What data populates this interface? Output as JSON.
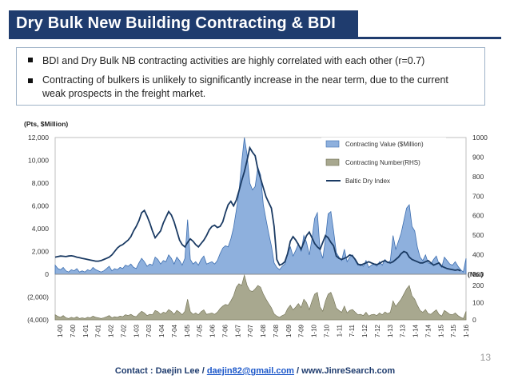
{
  "header": {
    "title": "Dry Bulk New Building Contracting & BDI"
  },
  "bullets": [
    "BDI and Dry Bulk NB contracting activities are highly correlated with each other (r=0.7)",
    "Contracting of bulkers is unlikely to significantly increase in the near term, due to the current weak prospects in the freight market."
  ],
  "footer": {
    "prefix": "Contact : Daejin Lee / ",
    "email": "daejin82@gmail.com",
    "suffix": " / www.JinreSearch.com"
  },
  "page_number": "13",
  "chart_data": {
    "type": "area",
    "left_axis_label": "(Pts, $Million)",
    "right_axis_label": "(No.)",
    "left_ticks": [
      "12,000",
      "10,000",
      "8,000",
      "6,000",
      "4,000",
      "2,000",
      "0",
      "(2,000)",
      "(4,000)"
    ],
    "left_tick_values": [
      12000,
      10000,
      8000,
      6000,
      4000,
      2000,
      0,
      -2000,
      -4000
    ],
    "right_upper_ticks": [
      "1000",
      "900",
      "800",
      "700",
      "600",
      "500",
      "400",
      "300"
    ],
    "right_upper_values": [
      1000,
      900,
      800,
      700,
      600,
      500,
      400,
      300
    ],
    "right_lower_ticks": [
      "200",
      "100",
      "0"
    ],
    "right_lower_values": [
      200,
      100,
      0
    ],
    "x_labels": [
      "1-00",
      "7-00",
      "1-01",
      "7-01",
      "1-02",
      "7-02",
      "1-03",
      "7-03",
      "1-04",
      "7-04",
      "1-05",
      "7-05",
      "1-06",
      "7-06",
      "1-07",
      "7-07",
      "1-08",
      "7-08",
      "1-09",
      "7-09",
      "1-10",
      "7-10",
      "1-11",
      "7-11",
      "1-12",
      "7-12",
      "1-13",
      "7-13",
      "1-14",
      "7-14",
      "1-15",
      "7-15",
      "1-16"
    ],
    "legend": [
      "Contracting Value ($Million)",
      "Contracting Number(RHS)",
      "Baltic Dry Index"
    ],
    "colors": {
      "value": "#8eb0dd",
      "value_edge": "#3e6fb0",
      "number": "#a8a88f",
      "number_edge": "#6e6e50",
      "bdi": "#1a3a63"
    },
    "series": [
      {
        "name": "Contracting Value ($Million)",
        "values": [
          800,
          500,
          400,
          600,
          300,
          200,
          400,
          300,
          500,
          200,
          300,
          200,
          400,
          300,
          600,
          400,
          300,
          200,
          300,
          500,
          700,
          300,
          500,
          400,
          600,
          500,
          800,
          700,
          900,
          600,
          500,
          1000,
          1400,
          1100,
          700,
          900,
          800,
          1500,
          1300,
          900,
          1200,
          1100,
          1700,
          1400,
          900,
          1500,
          1200,
          800,
          1400,
          4800,
          1300,
          900,
          1100,
          800,
          1300,
          1600,
          900,
          1000,
          1100,
          900,
          1200,
          1800,
          2300,
          2500,
          2400,
          3100,
          4100,
          5600,
          7200,
          9800,
          12000,
          10500,
          8000,
          7400,
          7700,
          9400,
          8700,
          6100,
          4800,
          3600,
          2500,
          1000,
          600,
          400,
          700,
          900,
          1800,
          2400,
          1600,
          2100,
          2700,
          2000,
          3400,
          2800,
          1700,
          3100,
          4900,
          5400,
          2100,
          1400,
          3100,
          5300,
          5500,
          3800,
          1900,
          1500,
          1200,
          2200,
          1100,
          1500,
          1700,
          1200,
          800,
          900,
          700,
          1200,
          600,
          800,
          900,
          700,
          1100,
          800,
          1300,
          1000,
          1200,
          3400,
          2200,
          2900,
          3600,
          4700,
          5800,
          6100,
          4200,
          3800,
          2400,
          1500,
          1200,
          1700,
          1000,
          900,
          1300,
          1600,
          900,
          600,
          1500,
          1200,
          900,
          800,
          1100,
          700,
          400,
          200,
          1400
        ]
      },
      {
        "name": "Contracting Number(RHS)",
        "values": [
          30,
          20,
          15,
          25,
          12,
          8,
          15,
          10,
          18,
          8,
          12,
          8,
          15,
          12,
          22,
          15,
          12,
          8,
          12,
          18,
          25,
          12,
          18,
          15,
          22,
          18,
          30,
          25,
          32,
          22,
          18,
          36,
          50,
          40,
          25,
          32,
          30,
          55,
          48,
          32,
          44,
          40,
          60,
          50,
          32,
          55,
          44,
          30,
          50,
          120,
          48,
          32,
          40,
          30,
          48,
          58,
          32,
          36,
          40,
          32,
          44,
          65,
          80,
          90,
          85,
          110,
          140,
          190,
          210,
          200,
          260,
          200,
          170,
          165,
          180,
          200,
          190,
          150,
          120,
          95,
          70,
          35,
          22,
          15,
          25,
          32,
          65,
          85,
          58,
          75,
          95,
          72,
          120,
          100,
          60,
          110,
          150,
          160,
          75,
          50,
          110,
          150,
          160,
          120,
          68,
          55,
          44,
          80,
          40,
          55,
          60,
          44,
          30,
          32,
          25,
          44,
          22,
          30,
          32,
          25,
          40,
          30,
          46,
          36,
          44,
          110,
          78,
          100,
          120,
          150,
          180,
          200,
          140,
          120,
          85,
          55,
          44,
          60,
          36,
          32,
          46,
          58,
          32,
          22,
          55,
          44,
          32,
          30,
          40,
          25,
          15,
          8,
          50
        ]
      },
      {
        "name": "Baltic Dry Index",
        "values": [
          1500,
          1550,
          1600,
          1580,
          1550,
          1600,
          1620,
          1580,
          1500,
          1450,
          1400,
          1350,
          1300,
          1250,
          1200,
          1150,
          1150,
          1200,
          1300,
          1400,
          1500,
          1700,
          2000,
          2300,
          2500,
          2600,
          2800,
          3000,
          3300,
          3800,
          4200,
          4700,
          5400,
          5600,
          5100,
          4500,
          3800,
          3200,
          3500,
          3800,
          4500,
          5000,
          5500,
          5200,
          4600,
          3800,
          3000,
          2600,
          2400,
          2800,
          3100,
          2900,
          2600,
          2400,
          2700,
          3000,
          3400,
          3900,
          4200,
          4300,
          4100,
          4200,
          4600,
          5400,
          6100,
          6400,
          6000,
          6500,
          7300,
          8200,
          9000,
          10000,
          11100,
          10700,
          10400,
          9200,
          8400,
          7600,
          6800,
          6300,
          5800,
          4200,
          1300,
          800,
          900,
          1100,
          1800,
          2900,
          3300,
          3000,
          2600,
          2200,
          2800,
          3400,
          3700,
          3200,
          2700,
          2400,
          2200,
          2800,
          3400,
          3200,
          2800,
          2500,
          1600,
          1400,
          1300,
          1400,
          1500,
          1700,
          1600,
          1300,
          900,
          800,
          900,
          1000,
          1100,
          1000,
          900,
          850,
          950,
          1100,
          1200,
          1050,
          1000,
          1100,
          1300,
          1500,
          1800,
          2000,
          1900,
          1500,
          1300,
          1200,
          1100,
          1000,
          1000,
          1100,
          1200,
          1000,
          800,
          900,
          1000,
          700,
          600,
          500,
          450,
          400,
          350,
          400,
          300
        ]
      }
    ],
    "xlim": [
      0,
      143
    ],
    "ylim_upper": [
      0,
      12000
    ],
    "ylim_lower": [
      -4000,
      0
    ]
  }
}
